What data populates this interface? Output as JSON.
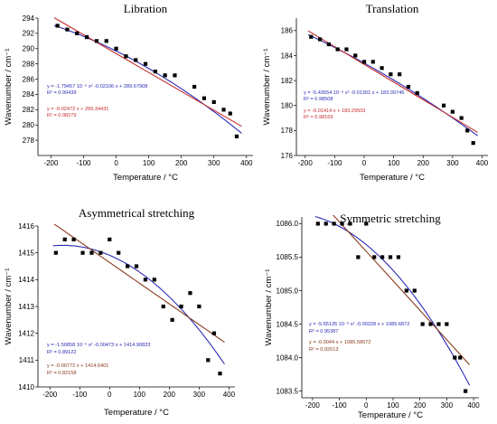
{
  "colors": {
    "axis": "#000000",
    "points": "#000000",
    "quadratic_fit": "#2b2bb5",
    "linear_fit": "#c62b2b",
    "linear_fit_brown": "#8a3a1a"
  },
  "chart_data": [
    {
      "type": "scatter",
      "title": "Libration",
      "xlabel": "Temperature / °C",
      "ylabel": "Wavenumber / cm⁻¹",
      "xlim": [
        -240,
        420
      ],
      "ylim": [
        276,
        294
      ],
      "xticks": [
        -200,
        -100,
        0,
        100,
        200,
        300,
        400
      ],
      "yticks": [
        278,
        280,
        282,
        284,
        286,
        288,
        290,
        292,
        294
      ],
      "x": [
        -180,
        -150,
        -120,
        -90,
        -60,
        -30,
        0,
        30,
        60,
        90,
        120,
        150,
        180,
        240,
        270,
        300,
        330,
        350,
        370
      ],
      "y": [
        293,
        292.5,
        292,
        291.5,
        291,
        291,
        290,
        289,
        288.5,
        288,
        287,
        286.5,
        286.5,
        285,
        283.5,
        283,
        282,
        281.5,
        278.5
      ],
      "fits": [
        {
          "kind": "quadratic",
          "coef": [
            -1.79457e-05,
            -0.02106,
            289.67908
          ],
          "color_role": "quadratic_fit",
          "equation": "y = -1.79457  10⁻⁵ x² -0.02106 x + 289.67908",
          "r2": "R² = 0.99439"
        },
        {
          "kind": "linear",
          "coef": [
            0,
            -0.02472,
            289.34431
          ],
          "color_role": "linear_fit",
          "equation": "y = -0.02472 x + 289.34431",
          "r2": "R² = 0.98279"
        }
      ]
    },
    {
      "type": "scatter",
      "title": "Translation",
      "xlabel": "Temperature / °C",
      "ylabel": "Wavenumber / cm⁻¹",
      "xlim": [
        -230,
        420
      ],
      "ylim": [
        176,
        187
      ],
      "xticks": [
        -200,
        -100,
        0,
        100,
        200,
        300,
        400
      ],
      "yticks": [
        176,
        178,
        180,
        182,
        184,
        186
      ],
      "x": [
        -180,
        -150,
        -120,
        -90,
        -60,
        -30,
        0,
        30,
        60,
        90,
        120,
        150,
        180,
        270,
        300,
        330,
        350,
        370
      ],
      "y": [
        185.5,
        185.3,
        184.9,
        184.5,
        184.5,
        184,
        183.5,
        183.5,
        183,
        182.5,
        182.5,
        181.5,
        181,
        180,
        179.5,
        179,
        178,
        177
      ],
      "fits": [
        {
          "kind": "quadratic",
          "coef": [
            -5.43554e-06,
            -0.01301,
            183.39746
          ],
          "color_role": "quadratic_fit",
          "equation": "y = -5.43554  10⁻⁶ x² -0.01301 x + 183.39746",
          "r2": "R² = 0.98508"
        },
        {
          "kind": "linear",
          "coef": [
            0,
            -0.01414,
            183.29503
          ],
          "color_role": "linear_fit",
          "equation": "y = -0.01414 x + 183.29503",
          "r2": "R² = 0.98169"
        }
      ]
    },
    {
      "type": "scatter",
      "title": "Asymmetrical stretching",
      "xlabel": "Temperature / °C",
      "ylabel": "Wavenumber / cm⁻¹",
      "xlim": [
        -240,
        420
      ],
      "ylim": [
        1410,
        1416
      ],
      "xticks": [
        -200,
        -100,
        0,
        100,
        200,
        300,
        400
      ],
      "yticks": [
        1410,
        1411,
        1412,
        1413,
        1414,
        1415,
        1416
      ],
      "x": [
        -180,
        -150,
        -120,
        -90,
        -60,
        -30,
        0,
        30,
        60,
        90,
        120,
        150,
        180,
        210,
        240,
        270,
        300,
        330,
        350,
        370
      ],
      "y": [
        1415,
        1415.5,
        1415.5,
        1415,
        1415,
        1415,
        1415.5,
        1415,
        1414.5,
        1414.5,
        1414,
        1414,
        1413,
        1412.5,
        1413,
        1413.5,
        1413,
        1411,
        1412,
        1410.5
      ],
      "fits": [
        {
          "kind": "quadratic",
          "coef": [
            -1.50858e-05,
            -0.00473,
            1414.90833
          ],
          "color_role": "quadratic_fit",
          "equation": "y = -1.50858  10⁻⁵ x² -0.00473 x + 1414.90833",
          "r2": "R² = 0.89122"
        },
        {
          "kind": "linear",
          "coef": [
            0,
            -0.00772,
            1414.6401
          ],
          "color_role": "linear_fit_brown",
          "equation": "y = -0.00772 x + 1414.6401",
          "r2": "R² = 0.82158"
        }
      ]
    },
    {
      "type": "scatter",
      "title": "Symmetric stretching",
      "xlabel": "Temperature / °C",
      "ylabel": "Wavenumber / cm⁻¹",
      "xlim": [
        -240,
        420
      ],
      "ylim": [
        1083.4,
        1086.1
      ],
      "xticks": [
        -200,
        -100,
        0,
        100,
        200,
        300,
        400
      ],
      "yticks": [
        1083.5,
        1084.0,
        1084.5,
        1085.0,
        1085.5,
        1086.0
      ],
      "x": [
        -180,
        -150,
        -120,
        -90,
        -60,
        -30,
        0,
        30,
        60,
        90,
        120,
        150,
        180,
        210,
        240,
        270,
        300,
        330,
        350,
        370
      ],
      "y": [
        1086,
        1086,
        1086,
        1086,
        1086,
        1085.5,
        1086,
        1085.5,
        1085.5,
        1085.5,
        1085.5,
        1085,
        1085,
        1084.5,
        1084.5,
        1084.5,
        1084.5,
        1084,
        1084,
        1083.5
      ],
      "fits": [
        {
          "kind": "quadratic",
          "coef": [
            -5.65135e-06,
            -0.00328,
            1085.6872
          ],
          "color_role": "quadratic_fit",
          "equation": "y = -5.65135  10⁻⁶ x² -0.00328 x + 1085.6872",
          "r2": "R² = 0.95387"
        },
        {
          "kind": "linear",
          "coef": [
            0,
            -0.0044,
            1085.58672
          ],
          "color_role": "linear_fit_brown",
          "equation": "y = -0.0044 x + 1085.58672",
          "r2": "R² = 0.92013"
        }
      ]
    }
  ]
}
